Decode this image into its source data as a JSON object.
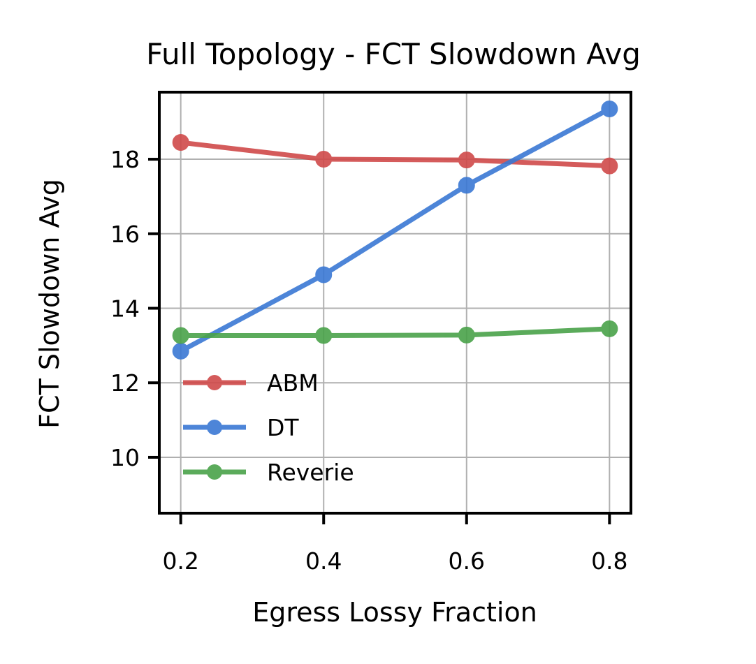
{
  "chart_data": {
    "type": "line",
    "title": "Full Topology - FCT Slowdown Avg",
    "xlabel": "Egress Lossy Fraction",
    "ylabel": "FCT Slowdown Avg",
    "x": [
      0.2,
      0.4,
      0.6,
      0.8
    ],
    "x_tick_labels": [
      "0.2",
      "0.4",
      "0.6",
      "0.8"
    ],
    "y_ticks": [
      10,
      12,
      14,
      16,
      18
    ],
    "y_tick_labels": [
      "10",
      "12",
      "14",
      "16",
      "18"
    ],
    "xlim": [
      0.17,
      0.83
    ],
    "ylim": [
      8.5,
      19.8
    ],
    "grid": true,
    "legend_position": "lower-left",
    "series": [
      {
        "name": "ABM",
        "color": "#d04a4a",
        "values": [
          18.45,
          18.0,
          17.98,
          17.82
        ]
      },
      {
        "name": "DT",
        "color": "#3a78d4",
        "values": [
          12.85,
          14.9,
          17.3,
          19.35
        ]
      },
      {
        "name": "Reverie",
        "color": "#4aa24a",
        "values": [
          13.27,
          13.27,
          13.28,
          13.45
        ]
      }
    ]
  }
}
